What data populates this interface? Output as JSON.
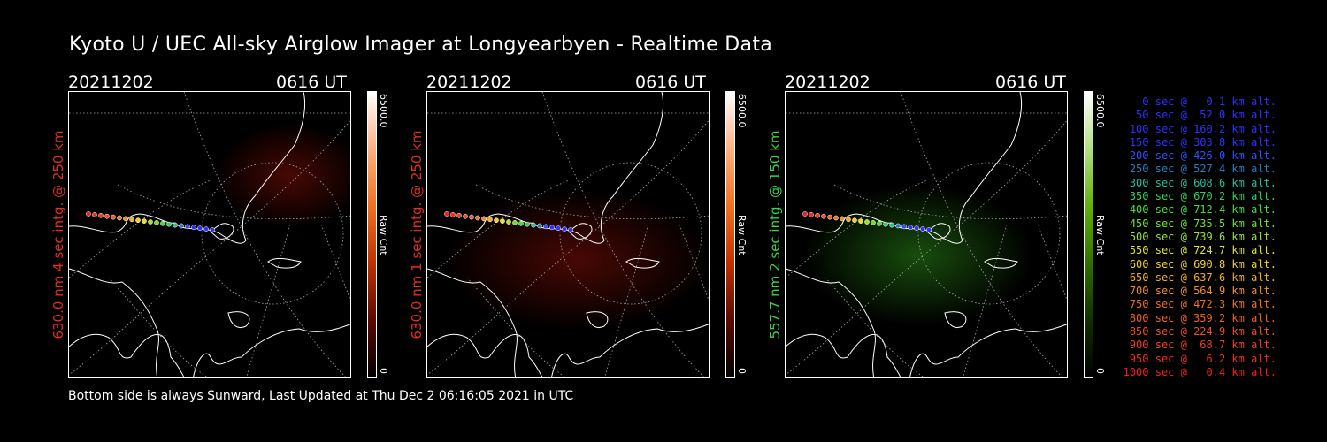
{
  "title": "Kyoto U / UEC All-sky Airglow Imager at Longyearbyen - Realtime Data",
  "footer": "Bottom side is always Sunward, Last Updated at Thu Dec  2 06:16:05 2021 in UTC",
  "panels": [
    {
      "date": "20211202",
      "time": "0616 UT",
      "ylabel": "630.0 nm 4 sec intg. @ 250 km",
      "ylabel_color": "#e03020",
      "cbar_max": "6500.0",
      "cbar_min": "0",
      "cbar_label": "Raw Cnt",
      "cbar_color": "#e05010",
      "glow": "red"
    },
    {
      "date": "20211202",
      "time": "0616 UT",
      "ylabel": "630.0 nm 1 sec intg. @ 250 km",
      "ylabel_color": "#e03020",
      "cbar_max": "6500.0",
      "cbar_min": "0",
      "cbar_label": "Raw Cnt",
      "cbar_color": "#e05010",
      "glow": "red"
    },
    {
      "date": "20211202",
      "time": "0616 UT",
      "ylabel": "557.7 nm 2 sec intg. @ 150 km",
      "ylabel_color": "#40d040",
      "cbar_max": "6500.0",
      "cbar_min": "0",
      "cbar_label": "Raw Cnt",
      "cbar_color": "#50b010",
      "glow": "green"
    }
  ],
  "legend": [
    {
      "text": "0 sec @   0.1 km alt.",
      "color": "#3030ff"
    },
    {
      "text": "50 sec @  52.0 km alt.",
      "color": "#3030ff"
    },
    {
      "text": "100 sec @ 160.2 km alt.",
      "color": "#3030ff"
    },
    {
      "text": "150 sec @ 303.8 km alt.",
      "color": "#3030ff"
    },
    {
      "text": "200 sec @ 426.0 km alt.",
      "color": "#3050ff"
    },
    {
      "text": "250 sec @ 527.4 km alt.",
      "color": "#2080c0"
    },
    {
      "text": "300 sec @ 608.6 km alt.",
      "color": "#20c0a0"
    },
    {
      "text": "350 sec @ 670.2 km alt.",
      "color": "#30d060"
    },
    {
      "text": "400 sec @ 712.4 km alt.",
      "color": "#40e040"
    },
    {
      "text": "450 sec @ 735.5 km alt.",
      "color": "#70e030"
    },
    {
      "text": "500 sec @ 739.6 km alt.",
      "color": "#a0e030"
    },
    {
      "text": "550 sec @ 724.7 km alt.",
      "color": "#e0e030"
    },
    {
      "text": "600 sec @ 690.8 km alt.",
      "color": "#f0d020"
    },
    {
      "text": "650 sec @ 637.6 km alt.",
      "color": "#f0b020"
    },
    {
      "text": "700 sec @ 564.9 km alt.",
      "color": "#f09020"
    },
    {
      "text": "750 sec @ 472.3 km alt.",
      "color": "#f07020"
    },
    {
      "text": "800 sec @ 359.2 km alt.",
      "color": "#f06020"
    },
    {
      "text": "850 sec @ 224.9 km alt.",
      "color": "#f05020"
    },
    {
      "text": "900 sec @  68.7 km alt.",
      "color": "#f04020"
    },
    {
      "text": "950 sec @   6.2 km alt.",
      "color": "#f03020"
    },
    {
      "text": "1000 sec @   0.4 km alt.",
      "color": "#f02020"
    }
  ]
}
